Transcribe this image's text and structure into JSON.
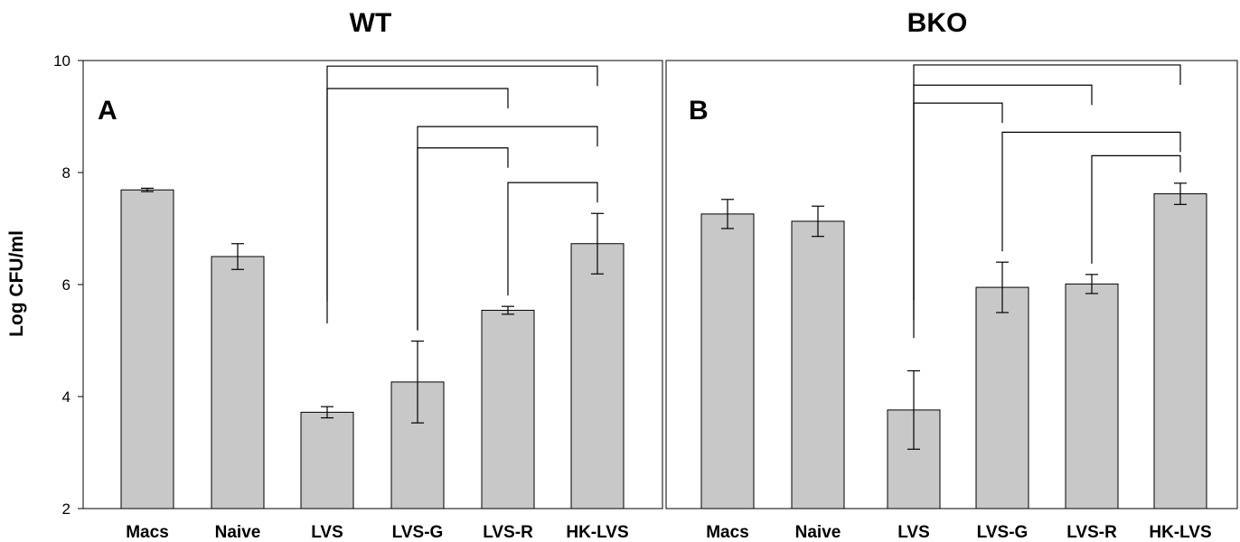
{
  "chart_data": [
    {
      "type": "bar",
      "title": "WT",
      "panel_label": "A",
      "ylabel": "Log CFU/ml",
      "ylim": [
        2,
        10
      ],
      "yticks": [
        2,
        4,
        6,
        8,
        10
      ],
      "categories": [
        "Macs",
        "Naive",
        "LVS",
        "LVS-G",
        "LVS-R",
        "HK-LVS"
      ],
      "values": [
        7.69,
        6.5,
        3.72,
        4.26,
        5.54,
        6.73
      ],
      "errors": [
        0.03,
        0.23,
        0.1,
        0.73,
        0.07,
        0.54
      ],
      "fill_color": "#c8c8c8",
      "significance_brackets": [
        {
          "from": "LVS",
          "to": "HK-LVS",
          "level": 9.9
        },
        {
          "from": "LVS",
          "to": "LVS-R",
          "level": 9.5
        },
        {
          "from": "LVS-G",
          "to": "HK-LVS",
          "level": 8.82
        },
        {
          "from": "LVS-G",
          "to": "LVS-R",
          "level": 8.44
        },
        {
          "from": "LVS-R",
          "to": "HK-LVS",
          "level": 7.82
        }
      ]
    },
    {
      "type": "bar",
      "title": "BKO",
      "panel_label": "B",
      "ylim": [
        2,
        10
      ],
      "categories": [
        "Macs",
        "Naive",
        "LVS",
        "LVS-G",
        "LVS-R",
        "HK-LVS"
      ],
      "values": [
        7.26,
        7.13,
        3.76,
        5.95,
        6.01,
        7.62
      ],
      "errors": [
        0.26,
        0.27,
        0.7,
        0.45,
        0.17,
        0.19
      ],
      "fill_color": "#c8c8c8",
      "significance_brackets": [
        {
          "from": "LVS",
          "to": "HK-LVS",
          "level": 9.92
        },
        {
          "from": "LVS",
          "to": "LVS-R",
          "level": 9.56
        },
        {
          "from": "LVS",
          "to": "LVS-G",
          "level": 9.24
        },
        {
          "from": "LVS-G",
          "to": "HK-LVS",
          "level": 8.72
        },
        {
          "from": "LVS-R",
          "to": "HK-LVS",
          "level": 8.3
        }
      ]
    }
  ]
}
